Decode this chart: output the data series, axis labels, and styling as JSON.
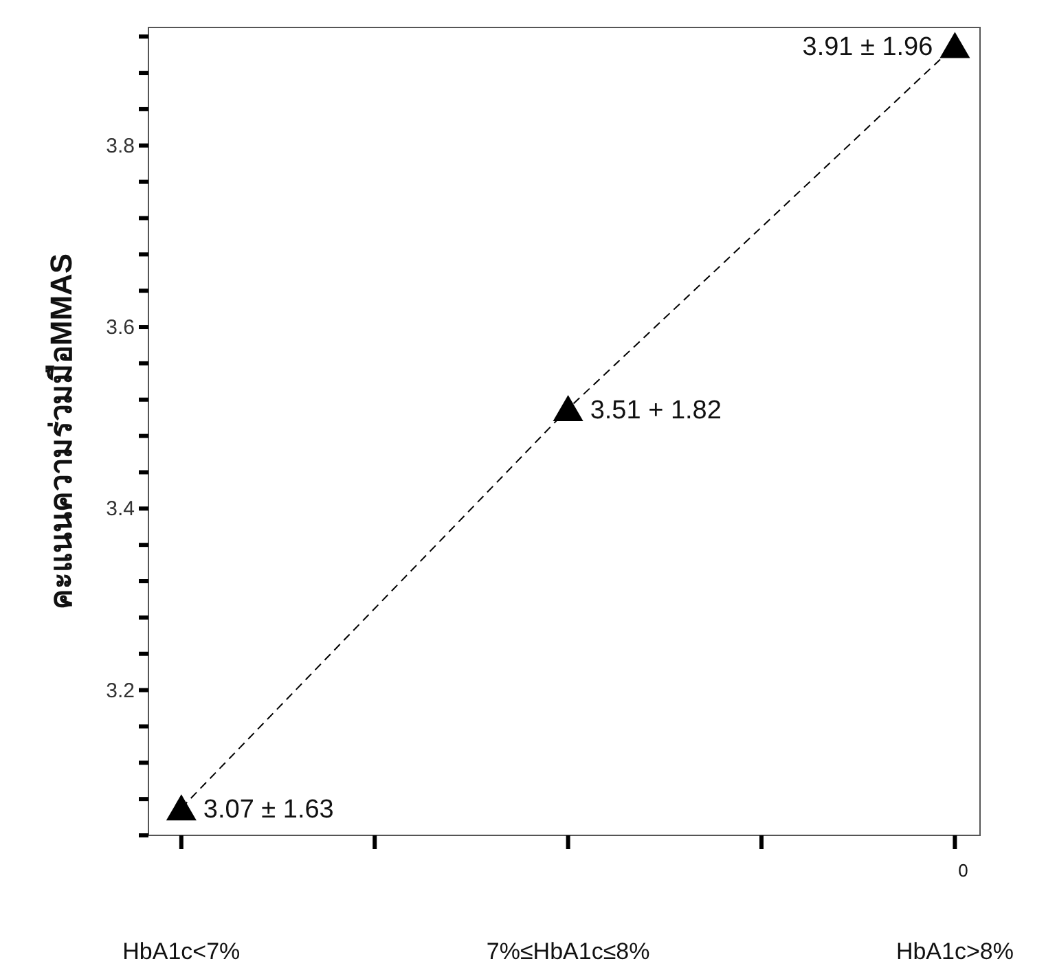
{
  "chart_data": {
    "type": "line",
    "ylabel": "คะแนนความร่วมมือMMAS",
    "categories": [
      "HbA1c<7%",
      null,
      "7%≤HbA1c≤8%",
      null,
      "HbA1c>8%"
    ],
    "series": [
      {
        "color": "#000000",
        "values": [
          3.07,
          null,
          3.51,
          null,
          3.91
        ],
        "value_labels": [
          "3.07 ± 1.63",
          null,
          "3.51 + 1.82",
          null,
          "3.91 ± 1.96"
        ]
      }
    ],
    "ylim": [
      3.04,
      3.93
    ],
    "yticks": [
      {
        "value": 3.04,
        "label": null
      },
      {
        "value": 3.08,
        "label": null
      },
      {
        "value": 3.12,
        "label": null
      },
      {
        "value": 3.16,
        "label": null
      },
      3.2,
      {
        "value": 3.24,
        "label": null
      },
      {
        "value": 3.28,
        "label": null
      },
      {
        "value": 3.32,
        "label": null
      },
      {
        "value": 3.36,
        "label": null
      },
      3.4,
      {
        "value": 3.44,
        "label": null
      },
      {
        "value": 3.48,
        "label": null
      },
      {
        "value": 3.52,
        "label": null
      },
      {
        "value": 3.56,
        "label": null
      },
      3.6,
      {
        "value": 3.64,
        "label": null
      },
      {
        "value": 3.68,
        "label": null
      },
      {
        "value": 3.72,
        "label": null
      },
      {
        "value": 3.76,
        "label": null
      },
      3.8,
      {
        "value": 3.84,
        "label": null
      },
      {
        "value": 3.88,
        "label": null
      },
      {
        "value": 3.92,
        "label": null
      }
    ],
    "marker": "triangle",
    "line_style": "dashed",
    "grid": false,
    "annotations": [
      "0"
    ]
  }
}
